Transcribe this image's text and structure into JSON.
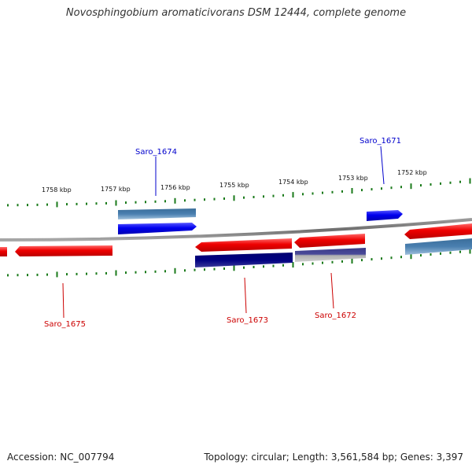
{
  "title": "Novosphingobium aromaticivorans DSM 12444, complete genome",
  "footer": {
    "accession": "Accession: NC_007794",
    "stats": "Topology: circular; Length: 3,561,584 bp; Genes: 3,397"
  },
  "colors": {
    "backbone": "#808080",
    "tick": "#1a7a1a",
    "forward_gene": "#0000ee",
    "forward_cds": "#4a7fb0",
    "reverse_gene": "#ee0000",
    "reverse_cds_dark": "#000080",
    "reverse_cds_mid": "#4a4a99",
    "label_forward": "#0000cc",
    "label_reverse": "#cc0000",
    "scale_label": "#111111"
  },
  "scale_labels": [
    "1758 kbp",
    "1757 kbp",
    "1756 kbp",
    "1755 kbp",
    "1754 kbp",
    "1753 kbp",
    "1752 kbp"
  ],
  "gene_labels": [
    {
      "id": "saro-1674",
      "text": "Saro_1674",
      "strand": "forward"
    },
    {
      "id": "saro-1671",
      "text": "Saro_1671",
      "strand": "forward"
    },
    {
      "id": "saro-1675",
      "text": "Saro_1675",
      "strand": "reverse"
    },
    {
      "id": "saro-1673",
      "text": "Saro_1673",
      "strand": "reverse"
    },
    {
      "id": "saro-1672",
      "text": "Saro_1672",
      "strand": "reverse"
    }
  ]
}
